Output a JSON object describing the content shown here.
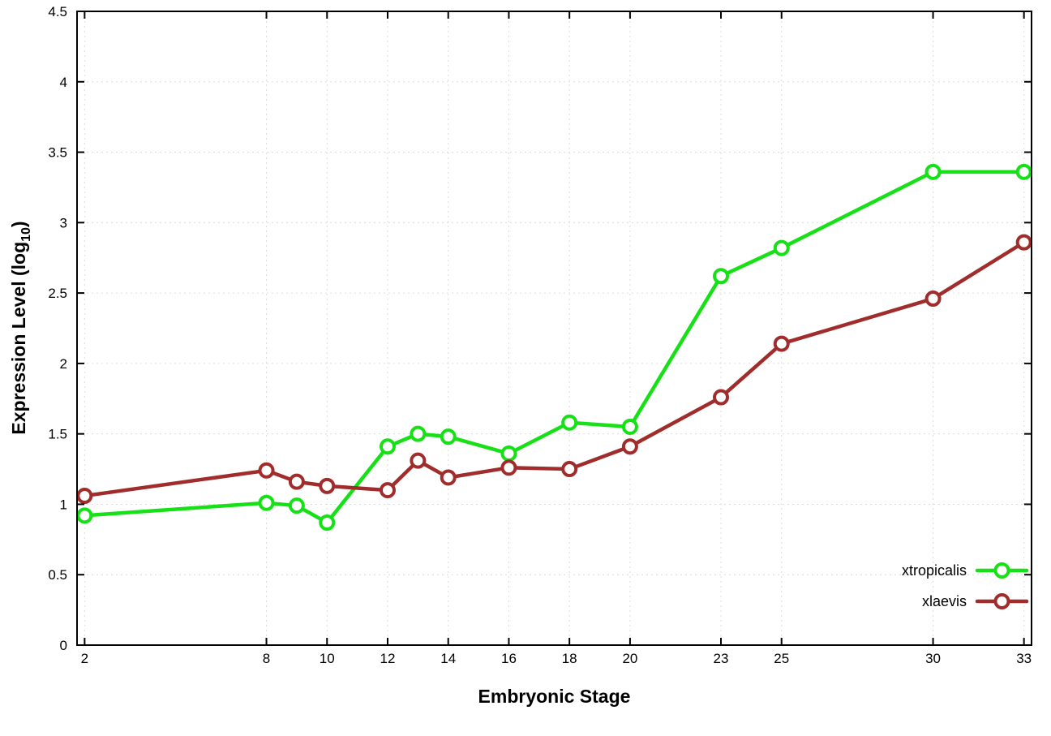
{
  "page": {
    "background": "#ffffff"
  },
  "chart_data": {
    "type": "line",
    "title": "",
    "xlabel": "Embryonic Stage",
    "ylabel_prefix": "Expression Level (log",
    "ylabel_sub": "10",
    "ylabel_suffix": ")",
    "x": [
      2,
      8,
      9,
      10,
      12,
      13,
      14,
      16,
      18,
      20,
      23,
      25,
      30,
      33
    ],
    "series": [
      {
        "name": "xtropicalis",
        "color": "#16e016",
        "values": [
          0.92,
          1.01,
          0.99,
          0.87,
          1.41,
          1.5,
          1.48,
          1.36,
          1.58,
          1.55,
          2.62,
          2.82,
          3.36,
          3.36
        ]
      },
      {
        "name": "xlaevis",
        "color": "#a02c2c",
        "values": [
          1.06,
          1.24,
          1.16,
          1.13,
          1.1,
          1.31,
          1.19,
          1.26,
          1.25,
          1.41,
          1.76,
          2.14,
          2.46,
          2.86
        ]
      }
    ],
    "xlim": [
      1.75,
      33.25
    ],
    "ylim": [
      0,
      4.5
    ],
    "xticks": [
      2,
      8,
      10,
      12,
      14,
      16,
      18,
      20,
      23,
      25,
      30,
      33
    ],
    "yticks": [
      0,
      0.5,
      1,
      1.5,
      2,
      2.5,
      3,
      3.5,
      4,
      4.5
    ],
    "grid": true,
    "grid_color": "#dcdcdc",
    "axis_color": "#000000",
    "marker": "open-circle",
    "legend_position": "bottom-right"
  }
}
